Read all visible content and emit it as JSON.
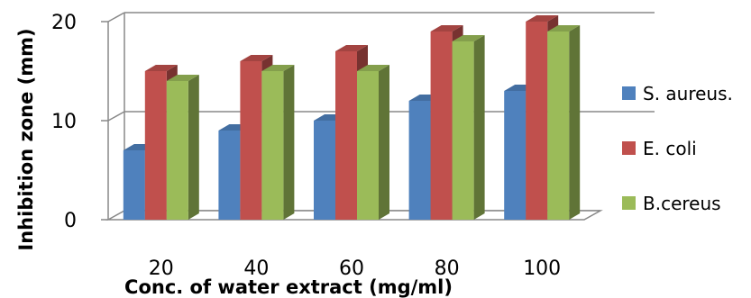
{
  "chart_data": {
    "type": "bar",
    "style": "3d-clustered-column",
    "title": "",
    "xlabel": "Conc.  of water extract (mg/ml)",
    "ylabel": "Inhibition zone (mm)",
    "categories": [
      "20",
      "40",
      "60",
      "80",
      "100"
    ],
    "series": [
      {
        "name": "S. aureus.",
        "color": "#4f81bd",
        "values": [
          7,
          9,
          10,
          12,
          13
        ]
      },
      {
        "name": "E. coli",
        "color": "#c0504d",
        "values": [
          15,
          16,
          17,
          19,
          20
        ]
      },
      {
        "name": "B.cereus",
        "color": "#9bbb59",
        "values": [
          14,
          15,
          15,
          18,
          19
        ]
      }
    ],
    "ylim": [
      0,
      20
    ],
    "yticks": [
      "0",
      "10",
      "20"
    ],
    "grid": true,
    "legend": "right"
  }
}
